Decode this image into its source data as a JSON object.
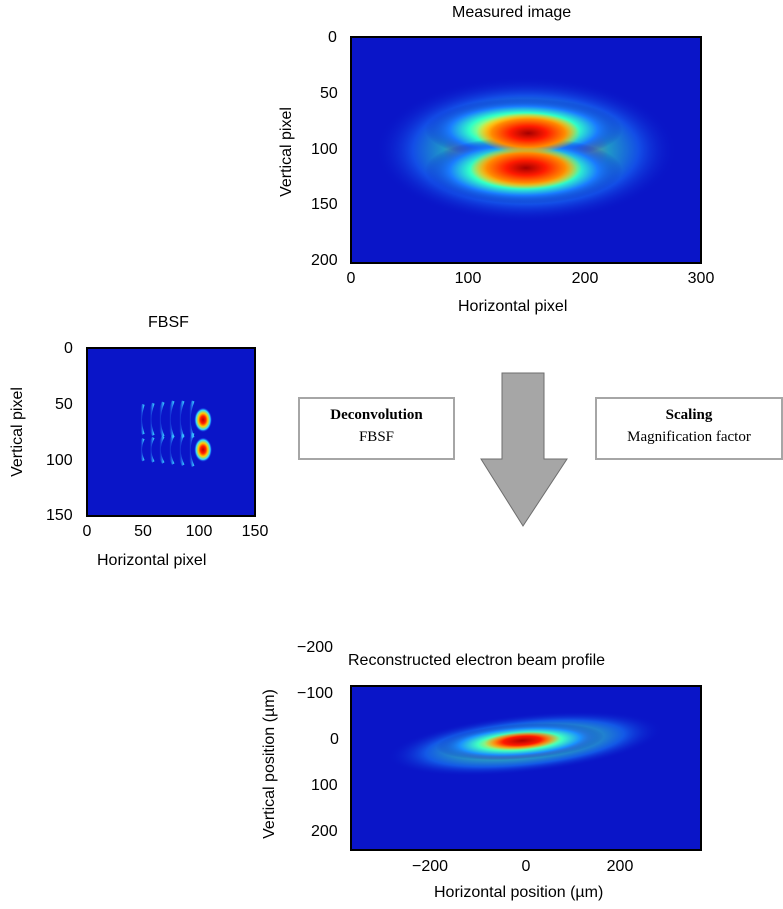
{
  "measured": {
    "title": "Measured image",
    "xlabel": "Horizontal pixel",
    "ylabel": "Vertical pixel",
    "xticks": [
      "0",
      "100",
      "200",
      "300"
    ],
    "yticks": [
      "0",
      "50",
      "100",
      "150",
      "200"
    ]
  },
  "fbsf": {
    "title": "FBSF",
    "xlabel": "Horizontal pixel",
    "ylabel": "Vertical pixel",
    "xticks": [
      "0",
      "50",
      "100",
      "150"
    ],
    "yticks": [
      "0",
      "50",
      "100",
      "150"
    ]
  },
  "reconstructed": {
    "title": "Reconstructed electron beam profile",
    "xlabel": "Horizontal position (µm)",
    "ylabel": "Vertical position (µm)",
    "xticks": [
      "−200",
      "0",
      "200"
    ],
    "yticks": [
      "−200",
      "−100",
      "0",
      "100",
      "200"
    ]
  },
  "deconvolution_box": {
    "title": "Deconvolution",
    "subtitle": "FBSF"
  },
  "scaling_box": {
    "title": "Scaling",
    "subtitle": "Magnification factor"
  },
  "colors": {
    "background": "#0a15c8",
    "arrow": "#a6a6a6"
  }
}
